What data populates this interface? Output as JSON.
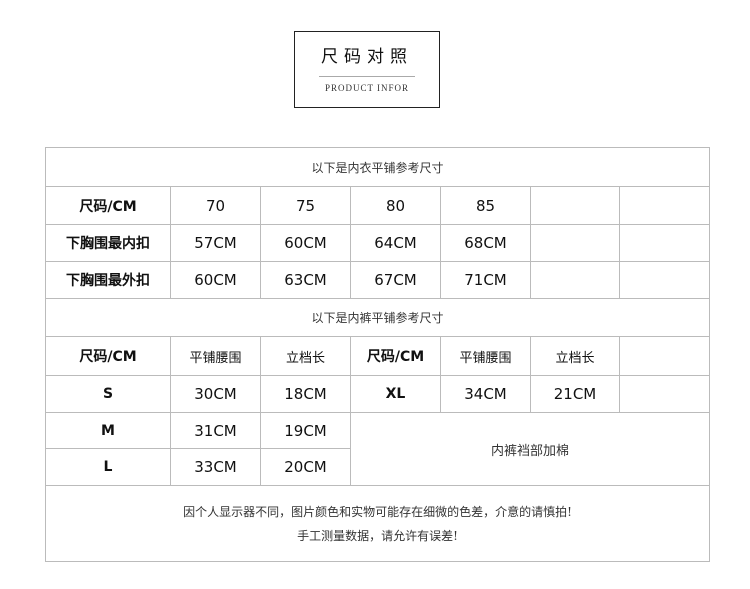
{
  "header": {
    "title": "尺码对照",
    "subtitle": "PRODUCT INFOR"
  },
  "bra": {
    "caption": "以下是内衣平铺参考尺寸",
    "size_label": "尺码/CM",
    "sizes": [
      "70",
      "75",
      "80",
      "85"
    ],
    "rows": [
      {
        "label": "下胸围最内扣",
        "values": [
          "57CM",
          "60CM",
          "64CM",
          "68CM"
        ]
      },
      {
        "label": "下胸围最外扣",
        "values": [
          "60CM",
          "63CM",
          "67CM",
          "71CM"
        ]
      }
    ]
  },
  "panties": {
    "caption": "以下是内裤平铺参考尺寸",
    "headers": [
      "尺码/CM",
      "平铺腰围",
      "立档长",
      "尺码/CM",
      "平铺腰围",
      "立档长"
    ],
    "rows": [
      {
        "size": "S",
        "waist": "30CM",
        "rise": "18CM"
      },
      {
        "size": "M",
        "waist": "31CM",
        "rise": "19CM"
      },
      {
        "size": "L",
        "waist": "33CM",
        "rise": "20CM"
      }
    ],
    "xl": {
      "size": "XL",
      "waist": "34CM",
      "rise": "21CM"
    },
    "note": "内裤裆部加棉"
  },
  "footer": {
    "line1": "因个人显示器不同，图片颜色和实物可能存在细微的色差，介意的请慎拍!",
    "line2": "手工测量数据，请允许有误差!"
  }
}
